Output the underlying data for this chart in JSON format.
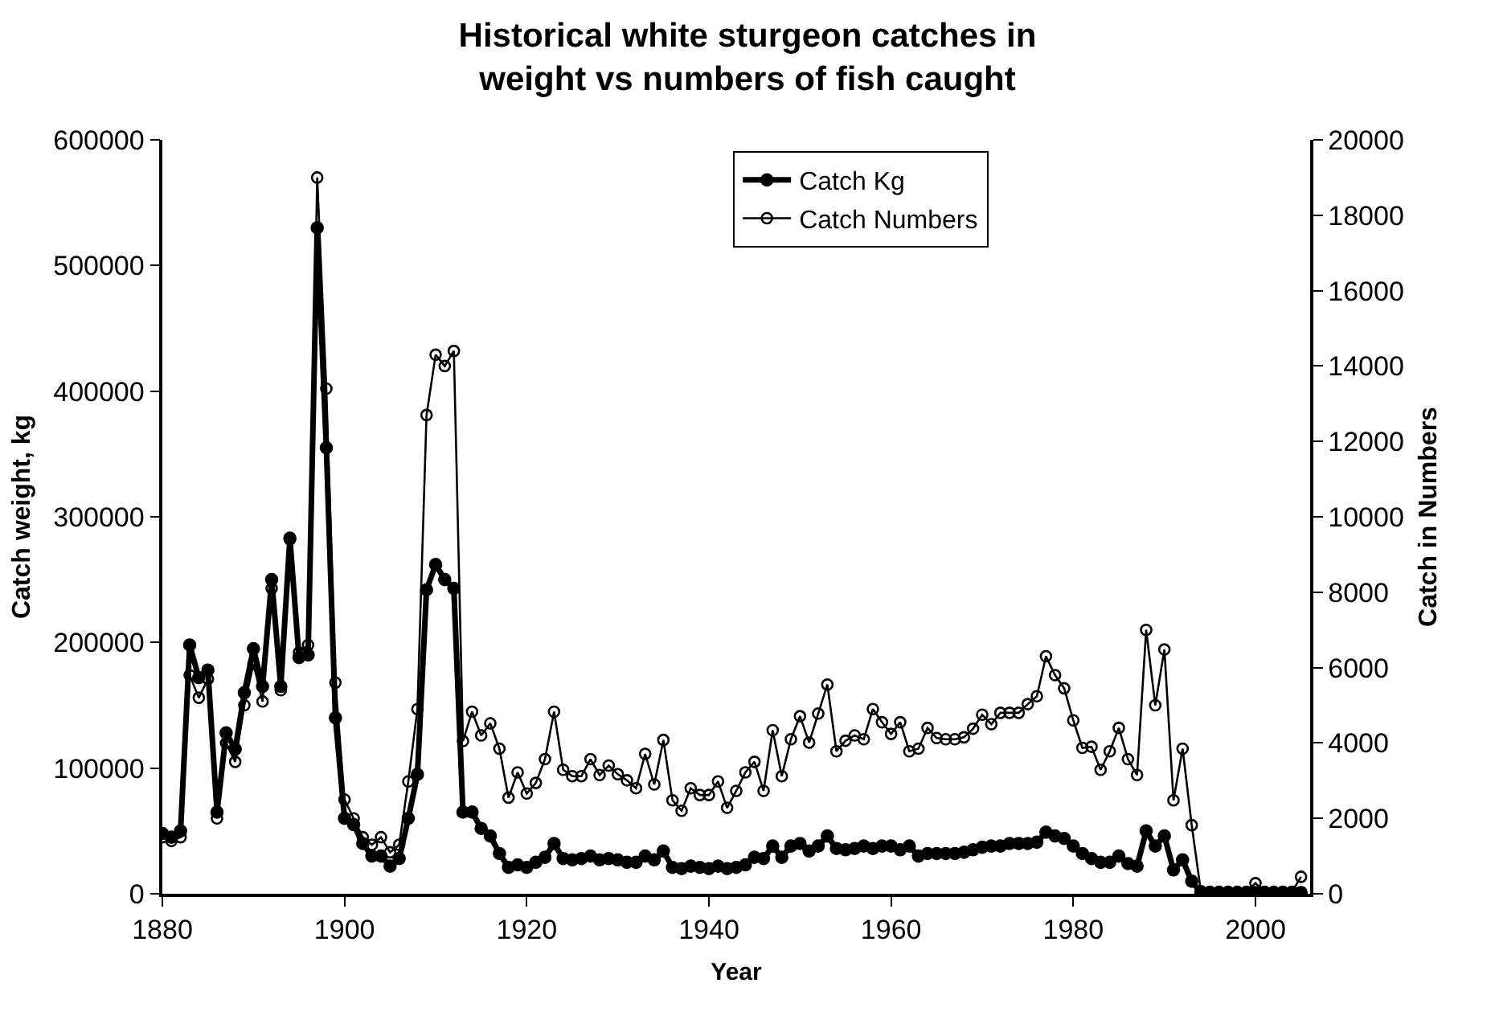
{
  "chart_data": {
    "type": "line",
    "title": "Historical white sturgeon catches in\nweight vs numbers of fish caught",
    "xlabel": "Year",
    "ylabel": "Catch weight, kg",
    "y2label": "Catch in Numbers",
    "x": [
      1880,
      1881,
      1882,
      1883,
      1884,
      1885,
      1886,
      1887,
      1888,
      1889,
      1890,
      1891,
      1892,
      1893,
      1894,
      1895,
      1896,
      1897,
      1898,
      1899,
      1900,
      1901,
      1902,
      1903,
      1904,
      1905,
      1906,
      1907,
      1908,
      1909,
      1910,
      1911,
      1912,
      1913,
      1914,
      1915,
      1916,
      1917,
      1918,
      1919,
      1920,
      1921,
      1922,
      1923,
      1924,
      1925,
      1926,
      1927,
      1928,
      1929,
      1930,
      1931,
      1932,
      1933,
      1934,
      1935,
      1936,
      1937,
      1938,
      1939,
      1940,
      1941,
      1942,
      1943,
      1944,
      1945,
      1946,
      1947,
      1948,
      1949,
      1950,
      1951,
      1952,
      1953,
      1954,
      1955,
      1956,
      1957,
      1958,
      1959,
      1960,
      1961,
      1962,
      1963,
      1964,
      1965,
      1966,
      1967,
      1968,
      1969,
      1970,
      1971,
      1972,
      1973,
      1974,
      1975,
      1976,
      1977,
      1978,
      1979,
      1980,
      1981,
      1982,
      1983,
      1984,
      1985,
      1986,
      1987,
      1988,
      1989,
      1990,
      1991,
      1992,
      1993,
      1994,
      1995,
      1996,
      1997,
      1998,
      1999,
      2000,
      2001,
      2002,
      2003,
      2004,
      2005
    ],
    "series": [
      {
        "name": "Catch Kg",
        "color": "#000000",
        "marker": "circle",
        "values": [
          48000,
          45000,
          50000,
          198000,
          172000,
          178000,
          65000,
          128000,
          115000,
          160000,
          195000,
          165000,
          250000,
          165000,
          283000,
          188000,
          190000,
          530000,
          355000,
          140000,
          60000,
          55000,
          40000,
          30000,
          30000,
          22000,
          28000,
          60000,
          95000,
          242000,
          262000,
          250000,
          243000,
          65000,
          65000,
          52000,
          46000,
          32000,
          21000,
          23000,
          21000,
          25000,
          29000,
          40000,
          28000,
          27000,
          28000,
          30000,
          27000,
          28000,
          27000,
          25000,
          25000,
          30000,
          27000,
          34000,
          21000,
          20000,
          22000,
          21000,
          20000,
          22000,
          20000,
          21000,
          23000,
          29000,
          28000,
          38000,
          29000,
          38000,
          40000,
          34000,
          38000,
          46000,
          36000,
          35000,
          36000,
          38000,
          36000,
          38000,
          38000,
          35000,
          38000,
          30000,
          32000,
          32000,
          32000,
          32000,
          33000,
          35000,
          37000,
          38000,
          38000,
          40000,
          40000,
          40000,
          41000,
          49000,
          46000,
          44000,
          38000,
          32000,
          28000,
          25000,
          25000,
          30000,
          24000,
          22000,
          50000,
          38000,
          46000,
          19000,
          27000,
          10000,
          1000,
          1000,
          1000,
          1000,
          1000,
          1000,
          1000,
          1000,
          1000,
          1000,
          1000,
          1000
        ]
      },
      {
        "name": "Catch Numbers",
        "color": "#000000",
        "marker": "circle",
        "axis": "y2",
        "values": [
          1500,
          1400,
          1500,
          5800,
          5200,
          5700,
          2000,
          4000,
          3500,
          5000,
          6100,
          5100,
          8100,
          5400,
          9400,
          6400,
          6600,
          19000,
          13400,
          5600,
          2500,
          2000,
          1500,
          1300,
          1500,
          1100,
          1300,
          2980,
          4900,
          12700,
          14300,
          14000,
          14400,
          4050,
          4830,
          4200,
          4520,
          3850,
          2550,
          3220,
          2660,
          2940,
          3570,
          4830,
          3290,
          3120,
          3120,
          3570,
          3150,
          3400,
          3170,
          3010,
          2800,
          3710,
          2900,
          4080,
          2480,
          2200,
          2800,
          2620,
          2620,
          2980,
          2280,
          2730,
          3220,
          3500,
          2730,
          4340,
          3120,
          4100,
          4710,
          4010,
          4780,
          5550,
          3780,
          4060,
          4200,
          4100,
          4900,
          4550,
          4240,
          4550,
          3780,
          3850,
          4400,
          4130,
          4100,
          4100,
          4150,
          4380,
          4750,
          4500,
          4800,
          4800,
          4800,
          5030,
          5240,
          6300,
          5800,
          5450,
          4600,
          3870,
          3900,
          3290,
          3780,
          4400,
          3570,
          3150,
          7000,
          5000,
          6480,
          2480,
          3850,
          1820,
          70,
          50,
          50,
          50,
          50,
          50,
          280,
          50,
          50,
          50,
          50,
          450
        ]
      }
    ],
    "xlim": [
      1880,
      2006
    ],
    "xticks": [
      1880,
      1900,
      1920,
      1940,
      1960,
      1980,
      2000
    ],
    "ylim": [
      0,
      600000
    ],
    "yticks": [
      0,
      100000,
      200000,
      300000,
      400000,
      500000,
      600000
    ],
    "y2lim": [
      0,
      20000
    ],
    "y2ticks": [
      0,
      2000,
      4000,
      6000,
      8000,
      10000,
      12000,
      14000,
      16000,
      18000,
      20000
    ],
    "legend": "top right"
  }
}
